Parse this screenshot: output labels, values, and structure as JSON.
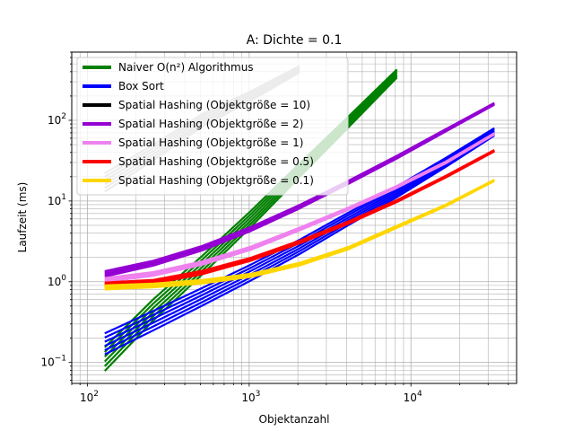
{
  "chart_data": {
    "type": "line",
    "title": "A: Dichte = 0.1",
    "xlabel": "Objektanzahl",
    "ylabel": "Laufzeit (ms)",
    "xscale": "log",
    "yscale": "log",
    "xlim": [
      80,
      45000
    ],
    "ylim": [
      0.055,
      700
    ],
    "x_ticks": [
      {
        "value": 100,
        "base": "10",
        "exp": "2"
      },
      {
        "value": 1000,
        "base": "10",
        "exp": "3"
      },
      {
        "value": 10000,
        "base": "10",
        "exp": "4"
      }
    ],
    "y_ticks": [
      {
        "value": 0.1,
        "base": "10",
        "exp": "−1"
      },
      {
        "value": 1,
        "base": "10",
        "exp": "0"
      },
      {
        "value": 10,
        "base": "10",
        "exp": "1"
      },
      {
        "value": 100,
        "base": "10",
        "exp": "2"
      }
    ],
    "grid": true,
    "legend_position": "upper-left",
    "series": [
      {
        "name": "Naiver O(n²) Algorithmus",
        "color": "#008000",
        "x": [
          128,
          256,
          512,
          1024,
          2048,
          4096,
          8192
        ],
        "y": [
          0.11,
          0.45,
          1.6,
          6.0,
          24,
          95,
          380
        ],
        "spread": 1.4
      },
      {
        "name": "Box Sort",
        "color": "#0000ff",
        "x": [
          128,
          256,
          512,
          1024,
          2048,
          4096,
          8192,
          16384,
          32768
        ],
        "y": [
          0.17,
          0.33,
          0.65,
          1.3,
          2.7,
          6.0,
          13,
          30,
          72
        ],
        "spread": 1.35
      },
      {
        "name": "Spatial Hashing (Objektgröße = 10)",
        "color": "#000000",
        "x": [],
        "y": [],
        "spread": 1.0
      },
      {
        "name": "Spatial Hashing (Objektgröße = 2)",
        "color": "#9400d3",
        "x": [
          128,
          256,
          512,
          1024,
          2048,
          4096,
          8192,
          16384,
          32768
        ],
        "y": [
          1.25,
          1.7,
          2.6,
          4.5,
          8.5,
          17,
          35,
          75,
          160
        ],
        "spread": 1.08
      },
      {
        "name": "Spatial Hashing (Objektgröße = 1)",
        "color": "#ee82ee",
        "x": [
          128,
          256,
          512,
          1024,
          2048,
          4096,
          8192,
          16384,
          32768
        ],
        "y": [
          1.05,
          1.25,
          1.7,
          2.6,
          4.5,
          8.0,
          15,
          30,
          68
        ],
        "spread": 1.06
      },
      {
        "name": "Spatial Hashing (Objektgröße = 0.5)",
        "color": "#ff0000",
        "x": [
          128,
          256,
          512,
          1024,
          2048,
          4096,
          8192,
          16384,
          32768
        ],
        "y": [
          0.92,
          1.0,
          1.3,
          1.9,
          3.1,
          5.4,
          10,
          20,
          42
        ],
        "spread": 1.06
      },
      {
        "name": "Spatial Hashing (Objektgröße = 0.1)",
        "color": "#ffd700",
        "x": [
          128,
          256,
          512,
          1024,
          2048,
          4096,
          8192,
          16384,
          32768
        ],
        "y": [
          0.85,
          0.9,
          1.0,
          1.2,
          1.65,
          2.6,
          4.8,
          8.8,
          18
        ],
        "spread": 1.06
      },
      {
        "name": "",
        "color": "#a0a0a0",
        "x": [
          128,
          256,
          512,
          1024,
          2048
        ],
        "y": [
          17,
          40,
          100,
          200,
          430
        ],
        "spread": 1.3
      }
    ]
  }
}
